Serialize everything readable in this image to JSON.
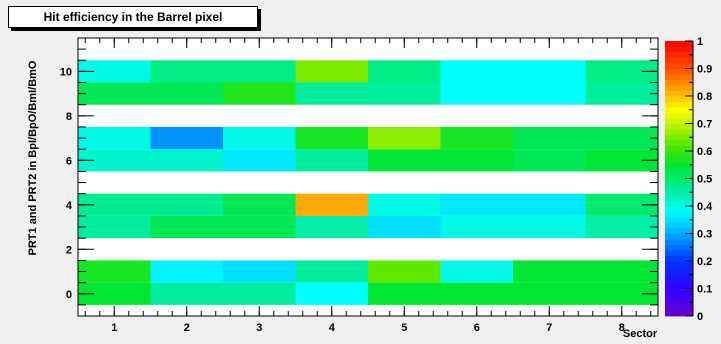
{
  "chart_data": {
    "type": "heatmap",
    "title": "Hit efficiency in the Barrel pixel",
    "xlabel": "Sector",
    "ylabel": "PRT1 and PRT2 in BpI/BpO/BmI/BmO",
    "x_bins": [
      1,
      2,
      3,
      4,
      5,
      6,
      7,
      8
    ],
    "xlim": [
      0.5,
      8.5
    ],
    "ylim": [
      -1,
      11.5
    ],
    "x_ticks": [
      "1",
      "2",
      "3",
      "4",
      "5",
      "6",
      "7",
      "8"
    ],
    "y_ticks": [
      "0",
      "2",
      "4",
      "6",
      "8",
      "10"
    ],
    "zlim": [
      0,
      1
    ],
    "z_ticks": [
      "0",
      "0.1",
      "0.2",
      "0.3",
      "0.4",
      "0.5",
      "0.6",
      "0.7",
      "0.8",
      "0.9",
      "1"
    ],
    "rows": [
      {
        "y": 0,
        "values": [
          0.55,
          0.46,
          0.46,
          0.38,
          0.55,
          0.55,
          0.55,
          0.55
        ]
      },
      {
        "y": 1,
        "values": [
          0.57,
          0.37,
          0.35,
          0.46,
          0.63,
          0.4,
          0.55,
          0.55
        ]
      },
      {
        "y": 3,
        "values": [
          0.46,
          0.52,
          0.52,
          0.45,
          0.35,
          0.4,
          0.4,
          0.45
        ]
      },
      {
        "y": 4,
        "values": [
          0.47,
          0.47,
          0.52,
          0.82,
          0.4,
          0.36,
          0.36,
          0.5
        ]
      },
      {
        "y": 6,
        "values": [
          0.42,
          0.42,
          0.36,
          0.46,
          0.55,
          0.55,
          0.52,
          0.55
        ]
      },
      {
        "y": 7,
        "values": [
          0.4,
          0.28,
          0.4,
          0.57,
          0.66,
          0.57,
          0.52,
          0.52
        ]
      },
      {
        "y": 9,
        "values": [
          0.52,
          0.52,
          0.58,
          0.46,
          0.46,
          0.38,
          0.38,
          0.46
        ]
      },
      {
        "y": 10,
        "values": [
          0.4,
          0.48,
          0.48,
          0.65,
          0.48,
          0.38,
          0.38,
          0.48
        ]
      }
    ]
  }
}
